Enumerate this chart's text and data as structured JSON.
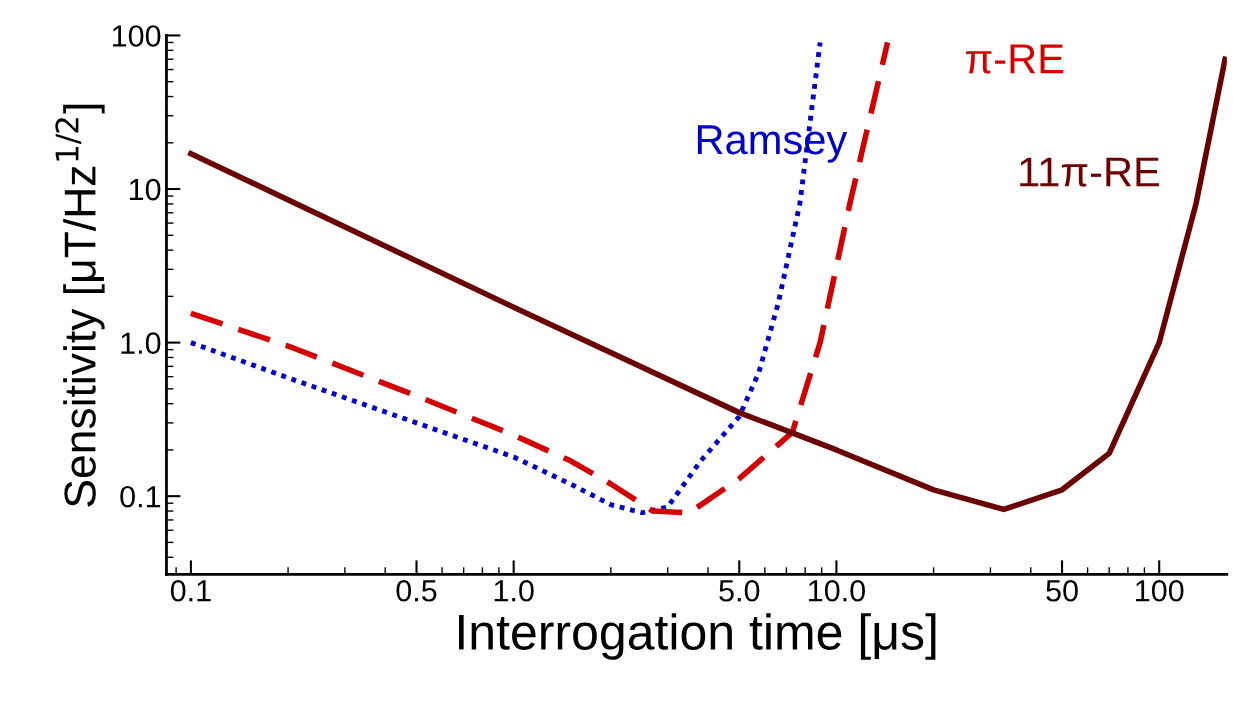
{
  "chart_data": {
    "type": "line",
    "xlabel": "Interrogation time [μs]",
    "ylabel": "Sensitivity [μT/Hz$^{1/2}$]",
    "log": "xy",
    "grid": false,
    "legend": false,
    "marker": "none",
    "xlim": [
      0.084,
      162
    ],
    "ylim": [
      0.031,
      100
    ],
    "xticks": [
      {
        "value": 0.1,
        "label": "0.1"
      },
      {
        "value": 0.5,
        "label": "0.5"
      },
      {
        "value": 1,
        "label": "1.0"
      },
      {
        "value": 5,
        "label": "5.0"
      },
      {
        "value": 10,
        "label": "10.0"
      },
      {
        "value": 50,
        "label": "50"
      },
      {
        "value": 100,
        "label": "100"
      }
    ],
    "yticks": [
      {
        "value": 0.1,
        "label": "0.1"
      },
      {
        "value": 1,
        "label": "1.0"
      },
      {
        "value": 10,
        "label": "10"
      },
      {
        "value": 100,
        "label": "100"
      }
    ],
    "series": [
      {
        "name": "Ramsey",
        "color": "#0000cc",
        "line_style": "dotted",
        "x": [
          0.1,
          0.2,
          0.5,
          1.0,
          1.5,
          2.0,
          2.5,
          3.0,
          3.8,
          5.0,
          5.75,
          6.6,
          7.7,
          8.9
        ],
        "values": [
          1.0,
          0.59,
          0.3,
          0.18,
          0.12,
          0.088,
          0.078,
          0.085,
          0.17,
          0.33,
          0.64,
          1.8,
          8,
          90
        ]
      },
      {
        "name": "π-RE",
        "color": "#d40000",
        "line_style": "dashed",
        "x": [
          0.1,
          0.2,
          0.5,
          1.0,
          1.5,
          2.0,
          2.7,
          3.5,
          5.0,
          7.3,
          8.9,
          11,
          14.4
        ],
        "values": [
          1.55,
          0.95,
          0.45,
          0.25,
          0.17,
          0.12,
          0.08,
          0.078,
          0.13,
          0.26,
          1.0,
          8,
          90
        ]
      },
      {
        "name": "11π-RE",
        "color": "#6b0000",
        "line_style": "solid",
        "x": [
          0.1,
          1.0,
          5.0,
          10,
          20,
          33,
          50,
          70,
          100,
          130,
          160
        ],
        "values": [
          17,
          1.7,
          0.35,
          0.2,
          0.11,
          0.082,
          0.11,
          0.19,
          1.0,
          8,
          70
        ]
      }
    ]
  }
}
